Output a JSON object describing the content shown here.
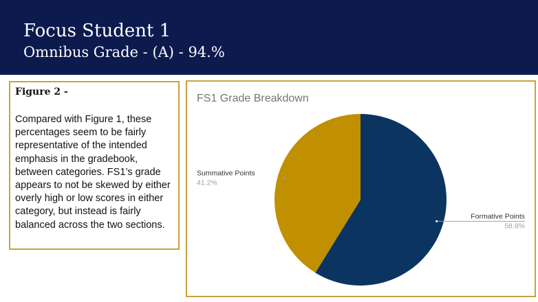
{
  "header": {
    "title": "Focus Student 1",
    "subtitle": "Omnibus Grade - (A) - 94.%"
  },
  "figure_text": {
    "heading": "Figure 2 -",
    "body": "Compared with Figure 1, these percentages seem to be fairly representative of the intended emphasis in the gradebook, between categories. FS1’s  grade appears to not be skewed by either overly high or low scores in either category, but instead is fairly balanced across the two sections."
  },
  "chart_data": {
    "type": "pie",
    "title": "FS1 Grade Breakdown",
    "slices": [
      {
        "label": "Formative Points",
        "value": 58.8,
        "display": "58.8%",
        "color": "#0b3560"
      },
      {
        "label": "Summative Points",
        "value": 41.2,
        "display": "41.2%",
        "color": "#c09000"
      }
    ],
    "start": "12 o'clock, clockwise"
  }
}
